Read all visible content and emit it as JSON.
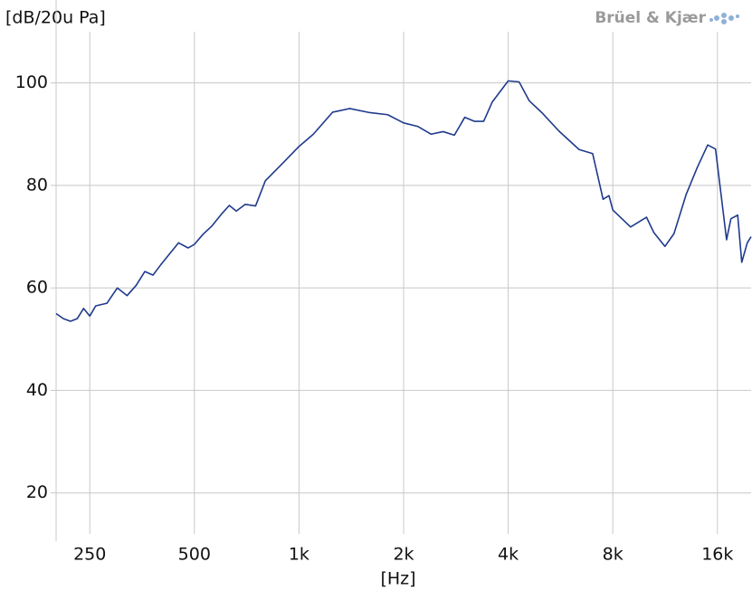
{
  "chart_data": {
    "type": "line",
    "y_label": "[dB/20u Pa]",
    "x_label": "[Hz]",
    "brand": "Brüel & Kjær",
    "log_x": true,
    "grid": true,
    "xlim": [
      200,
      20000
    ],
    "ylim": [
      12,
      110
    ],
    "xticks": [
      250,
      500,
      {
        "value": 1000,
        "label": "1k"
      },
      {
        "value": 2000,
        "label": "2k"
      },
      {
        "value": 4000,
        "label": "4k"
      },
      {
        "value": 8000,
        "label": "8k"
      },
      {
        "value": 16000,
        "label": "16k"
      }
    ],
    "yticks": [
      20,
      40,
      60,
      80,
      100
    ],
    "x": [
      200,
      210,
      220,
      230,
      240,
      250,
      260,
      280,
      300,
      320,
      340,
      360,
      380,
      400,
      450,
      480,
      500,
      530,
      560,
      600,
      630,
      660,
      700,
      750,
      800,
      900,
      1000,
      1100,
      1250,
      1400,
      1600,
      1800,
      2000,
      2200,
      2400,
      2600,
      2800,
      3000,
      3200,
      3400,
      3600,
      4000,
      4300,
      4600,
      5000,
      5600,
      6400,
      7000,
      7500,
      7800,
      8000,
      9000,
      10000,
      10500,
      11300,
      12000,
      13000,
      14000,
      15000,
      15800,
      17000,
      17500,
      18300,
      18800,
      19500,
      20000
    ],
    "series": [
      {
        "color": "#1f3a8c",
        "values": [
          55,
          54,
          53.5,
          54,
          56,
          54.5,
          56.5,
          57,
          60,
          58.5,
          60.5,
          63.2,
          62.5,
          64.5,
          68.8,
          67.8,
          68.5,
          70.5,
          72,
          74.5,
          76.1,
          75,
          76.3,
          76,
          80.9,
          84.4,
          87.6,
          90,
          94.3,
          95,
          94.2,
          93.8,
          92.2,
          91.5,
          90,
          90.5,
          89.8,
          93.3,
          92.5,
          92.5,
          96.3,
          100.4,
          100.2,
          96.5,
          94.2,
          90.6,
          87,
          86.2,
          77.3,
          78,
          75.2,
          71.9,
          73.8,
          70.8,
          68.1,
          70.6,
          78.2,
          83.5,
          87.9,
          87.1,
          69.4,
          73.5,
          74.2,
          65,
          68.8,
          70
        ]
      }
    ]
  }
}
